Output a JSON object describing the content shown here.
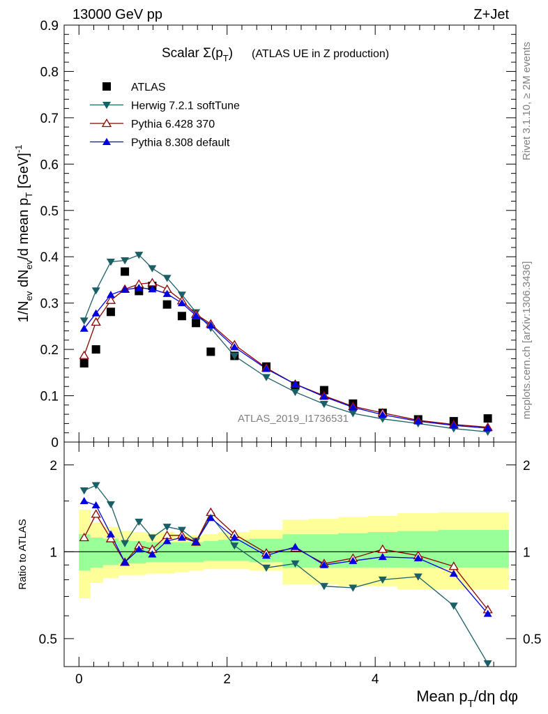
{
  "header": {
    "energy_label": "13000 GeV pp",
    "process_label": "Z+Jet"
  },
  "side_labels": {
    "rivet": "Rivet 3.1.10, ≥ 2M events",
    "mcplots": "mcplots.cern.ch [arXiv:1306.3436]"
  },
  "watermark": "ATLAS_2019_I1736531",
  "colors": {
    "ATLAS": "#000000",
    "Herwig": "#1a5e66",
    "Pythia6": "#8b0000",
    "Pythia8": "#0000e0",
    "band_outer": "#ffff99",
    "band_inner": "#99ff99"
  },
  "chart_data": [
    {
      "type": "scatter",
      "title_main": "Scalar Σ(p",
      "title_sub": "T",
      "title_close": ")",
      "title_tail": "(ATLAS UE in Z production)",
      "ylabel": "1/N_ev dN_ev/d mean p_T [GeV]^-1",
      "ylabel_parts": {
        "a": "1/N",
        "b": "ev",
        "c": " dN",
        "d": "ev",
        "e": "/d mean p",
        "f": "T",
        "g": " [GeV]",
        "h": "-1"
      },
      "xlim": [
        -0.2,
        5.9
      ],
      "ylim": [
        0,
        0.9
      ],
      "y_ticks": [
        0,
        0.1,
        0.2,
        0.3,
        0.4,
        0.5,
        0.6,
        0.7,
        0.8,
        0.9
      ],
      "y_tick_labels": [
        "0",
        "0.1",
        "0.2",
        "0.3",
        "0.4",
        "0.5",
        "0.6",
        "0.7",
        "0.8",
        "0.9"
      ],
      "legend_position": "top-left",
      "x": [
        0.07,
        0.23,
        0.43,
        0.62,
        0.81,
        0.99,
        1.19,
        1.39,
        1.58,
        1.78,
        2.1,
        2.53,
        2.92,
        3.31,
        3.7,
        4.1,
        4.58,
        5.06,
        5.52
      ],
      "series": [
        {
          "name": "ATLAS",
          "key": "ATLAS",
          "marker": "square",
          "values": [
            0.17,
            0.2,
            0.281,
            0.368,
            0.326,
            0.337,
            0.297,
            0.272,
            0.257,
            0.195,
            0.186,
            0.163,
            0.122,
            0.112,
            0.083,
            0.063,
            0.049,
            0.045,
            0.051
          ]
        },
        {
          "name": "Herwig 7.2.1 softTune",
          "key": "Herwig",
          "marker": "tri-down",
          "values": [
            0.262,
            0.327,
            0.389,
            0.392,
            0.404,
            0.375,
            0.354,
            0.318,
            0.28,
            0.246,
            0.186,
            0.14,
            0.108,
            0.082,
            0.062,
            0.05,
            0.04,
            0.029,
            0.022
          ]
        },
        {
          "name": "Pythia 6.428 370",
          "key": "Pythia6",
          "marker": "tri-up-open",
          "values": [
            0.187,
            0.259,
            0.306,
            0.33,
            0.341,
            0.344,
            0.33,
            0.305,
            0.276,
            0.255,
            0.21,
            0.16,
            0.125,
            0.1,
            0.077,
            0.063,
            0.047,
            0.038,
            0.032
          ]
        },
        {
          "name": "Pythia 8.308 default",
          "key": "Pythia8",
          "marker": "tri-up",
          "values": [
            0.245,
            0.278,
            0.318,
            0.329,
            0.333,
            0.33,
            0.32,
            0.3,
            0.273,
            0.252,
            0.205,
            0.158,
            0.125,
            0.098,
            0.075,
            0.059,
            0.045,
            0.036,
            0.03
          ]
        }
      ]
    },
    {
      "type": "line",
      "ylabel": "Ratio to ATLAS",
      "xlabel": "Mean p_T/dη dφ",
      "xlabel_parts": {
        "a": "Mean p",
        "b": "T",
        "c": "/dη dφ"
      },
      "xlim": [
        -0.2,
        5.9
      ],
      "ylim": [
        0.4,
        2.4
      ],
      "log_y": true,
      "x_ticks": [
        0,
        2,
        4
      ],
      "x_tick_labels": [
        "0",
        "2",
        "4"
      ],
      "y_ticks": [
        0.5,
        1,
        2
      ],
      "y_tick_labels": [
        "0.5",
        "1",
        "2"
      ],
      "bin_edges": [
        0,
        0.15,
        0.32,
        0.53,
        0.72,
        0.9,
        1.08,
        1.29,
        1.48,
        1.68,
        1.88,
        2.3,
        2.75,
        3.1,
        3.5,
        3.9,
        4.3,
        4.85,
        5.25,
        5.8
      ],
      "band_outer": [
        [
          0.69,
          1.4
        ],
        [
          0.78,
          1.26
        ],
        [
          0.81,
          1.22
        ],
        [
          0.83,
          1.18
        ],
        [
          0.83,
          1.17
        ],
        [
          0.84,
          1.16
        ],
        [
          0.84,
          1.17
        ],
        [
          0.85,
          1.15
        ],
        [
          0.86,
          1.14
        ],
        [
          0.87,
          1.15
        ],
        [
          0.87,
          1.17
        ],
        [
          0.86,
          1.19
        ],
        [
          0.77,
          1.29
        ],
        [
          0.77,
          1.3
        ],
        [
          0.76,
          1.32
        ],
        [
          0.76,
          1.33
        ],
        [
          0.74,
          1.36
        ],
        [
          0.74,
          1.37
        ],
        [
          0.74,
          1.37
        ]
      ],
      "band_inner": [
        [
          0.86,
          1.15
        ],
        [
          0.88,
          1.12
        ],
        [
          0.9,
          1.11
        ],
        [
          0.91,
          1.09
        ],
        [
          0.91,
          1.09
        ],
        [
          0.92,
          1.08
        ],
        [
          0.92,
          1.08
        ],
        [
          0.92,
          1.08
        ],
        [
          0.92,
          1.08
        ],
        [
          0.93,
          1.09
        ],
        [
          0.93,
          1.1
        ],
        [
          0.92,
          1.11
        ],
        [
          0.88,
          1.15
        ],
        [
          0.88,
          1.15
        ],
        [
          0.88,
          1.16
        ],
        [
          0.88,
          1.17
        ],
        [
          0.88,
          1.18
        ],
        [
          0.88,
          1.19
        ],
        [
          0.88,
          1.19
        ]
      ],
      "x": [
        0.07,
        0.23,
        0.43,
        0.62,
        0.81,
        0.99,
        1.19,
        1.39,
        1.58,
        1.78,
        2.1,
        2.53,
        2.92,
        3.31,
        3.7,
        4.1,
        4.58,
        5.06,
        5.52
      ],
      "series": [
        {
          "name": "Herwig 7.2.1 softTune",
          "key": "Herwig",
          "marker": "tri-down",
          "values": [
            1.63,
            1.7,
            1.46,
            1.07,
            1.27,
            1.12,
            1.22,
            1.19,
            1.09,
            1.33,
            1.05,
            0.88,
            0.91,
            0.76,
            0.75,
            0.8,
            0.82,
            0.65,
            0.41
          ]
        },
        {
          "name": "Pythia 6.428 370",
          "key": "Pythia6",
          "marker": "tri-up-open",
          "values": [
            1.12,
            1.35,
            1.11,
            0.92,
            1.05,
            1.02,
            1.14,
            1.14,
            1.08,
            1.37,
            1.15,
            0.99,
            1.03,
            0.91,
            0.95,
            1.02,
            0.97,
            0.89,
            0.63
          ]
        },
        {
          "name": "Pythia 8.308 default",
          "key": "Pythia8",
          "marker": "tri-up",
          "values": [
            1.5,
            1.45,
            1.15,
            0.92,
            1.02,
            0.98,
            1.09,
            1.12,
            1.08,
            1.31,
            1.12,
            0.97,
            1.04,
            0.9,
            0.93,
            0.96,
            0.95,
            0.84,
            0.61
          ]
        }
      ]
    }
  ]
}
